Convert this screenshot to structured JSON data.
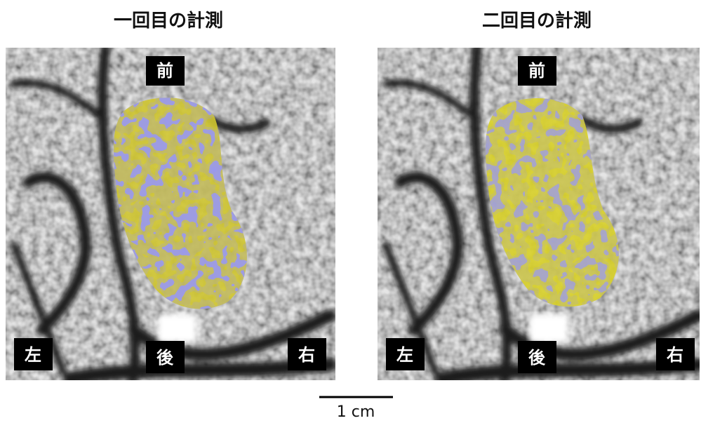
{
  "panels": [
    {
      "title": "一回目の計測",
      "labels": {
        "front": "前",
        "back": "後",
        "left": "左",
        "right": "右"
      }
    },
    {
      "title": "二回目の計測",
      "labels": {
        "front": "前",
        "back": "後",
        "left": "左",
        "right": "右"
      }
    }
  ],
  "scale_bar": {
    "label": "1 cm"
  }
}
